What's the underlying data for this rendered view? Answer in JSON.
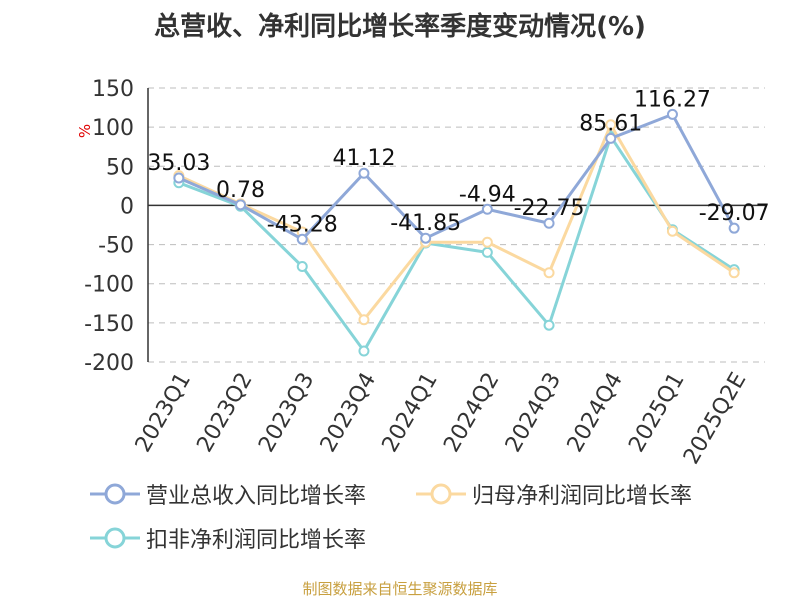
{
  "chart_data": {
    "type": "line",
    "title": "总营收、净利同比增长率季度变动情况(%)",
    "ylabel": "%",
    "xlabel": "",
    "categories": [
      "2023Q1",
      "2023Q2",
      "2023Q3",
      "2023Q4",
      "2024Q1",
      "2024Q2",
      "2024Q3",
      "2024Q4",
      "2025Q1",
      "2025Q2E"
    ],
    "ylim": [
      -200,
      150
    ],
    "yticks": [
      150,
      100,
      50,
      0,
      -50,
      -100,
      -150,
      -200
    ],
    "grid": true,
    "legend_position": "bottom",
    "series": [
      {
        "name": "营业总收入同比增长率",
        "color": "#8fa8d8",
        "values": [
          35.03,
          0.78,
          -43.28,
          41.12,
          -41.85,
          -4.94,
          -22.75,
          85.61,
          116.27,
          -29.07
        ],
        "labels": [
          "35.03",
          "0.78",
          "-43.28",
          "41.12",
          "-41.85",
          "-4.94",
          "-22.75",
          "85.61",
          "116.27",
          "-29.07"
        ]
      },
      {
        "name": "归母净利润同比增长率",
        "color": "#fbd9a0",
        "values": [
          38,
          2,
          -34,
          -146,
          -47,
          -47,
          -86,
          103,
          -33,
          -86
        ]
      },
      {
        "name": "扣非净利润同比增长率",
        "color": "#86d4d8",
        "values": [
          29,
          -1,
          -78,
          -186,
          -48,
          -60,
          -153,
          88,
          -31,
          -82
        ]
      }
    ]
  },
  "source_note": "制图数据来自恒生聚源数据库"
}
